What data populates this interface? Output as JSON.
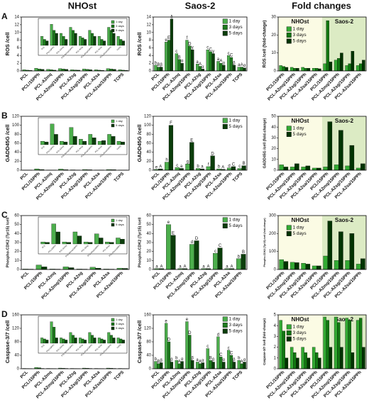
{
  "headers": [
    "NHOst",
    "Saos-2",
    "Fold changes"
  ],
  "panel_letters": [
    "A",
    "B",
    "C",
    "D"
  ],
  "chart_data": [
    {
      "type": "bar",
      "ylabel": "ROS /cell",
      "categories": [
        "PCL",
        "PCL/15PPh",
        "PCL-A2mq",
        "PCL-A2mq/15PPh",
        "PCL-A2sg",
        "PCL-A2sg/15PPh",
        "PCL-A2sa",
        "PCL-A2sa/15PPh",
        "TCPS"
      ],
      "ylim": [
        0,
        14
      ],
      "yticks": [
        0,
        2,
        4,
        6,
        8,
        10,
        12,
        14
      ],
      "inset_ylim": [
        0,
        0.8
      ],
      "legend": true,
      "series": [
        {
          "name": "1 day",
          "color": "#4cae4c",
          "values": [
            0.3,
            0.7,
            0.4,
            0.6,
            0.3,
            0.5,
            0.3,
            0.6,
            0.3
          ]
        },
        {
          "name": "3 days",
          "color": "#1e7b1e",
          "values": [
            0.2,
            0.5,
            0.3,
            0.5,
            0.25,
            0.4,
            0.2,
            0.5,
            0.2
          ]
        },
        {
          "name": "5 days",
          "color": "#0b3d0b",
          "values": [
            0.15,
            0.4,
            0.2,
            0.4,
            0.2,
            0.3,
            0.15,
            0.4,
            0.15
          ]
        }
      ]
    },
    {
      "type": "bar",
      "ylabel": "ROS /cell",
      "categories": [
        "PCL",
        "PCL/15PPh",
        "PCL-A2mq",
        "PCL-A2mq/15PPh",
        "PCL-A2sg",
        "PCL-A2sg/15PPh",
        "PCL-A2sa",
        "PCL-A2sa/15PPh",
        "TCPS"
      ],
      "ylim": [
        0,
        14
      ],
      "yticks": [
        0,
        2,
        4,
        6,
        8,
        10,
        12,
        14
      ],
      "legend": true,
      "series": [
        {
          "name": "1 day",
          "color": "#4cae4c",
          "values": [
            1.5,
            7.5,
            4.5,
            8,
            1.8,
            5.5,
            2.5,
            4,
            1
          ],
          "letters": [
            "b",
            "e",
            "c",
            "f",
            "a",
            "c",
            "a",
            "c",
            "a"
          ]
        },
        {
          "name": "3 days",
          "color": "#1e7b1e",
          "values": [
            1,
            8,
            3,
            6.5,
            1.2,
            5,
            2,
            3.5,
            1
          ],
          "letters": [
            "B",
            "E",
            "B",
            "D",
            "A",
            "C",
            "A",
            "C",
            "A"
          ]
        },
        {
          "name": "5 days",
          "color": "#0b3d0b",
          "values": [
            1,
            13.5,
            2,
            5.5,
            0.5,
            4.5,
            1.5,
            1.5,
            0.8
          ],
          "letters": [
            "β",
            "δ",
            "α",
            "γ",
            "α",
            "γ",
            "α",
            "β",
            "α"
          ]
        }
      ]
    },
    {
      "type": "bar",
      "ylabel": "ROS /cell (fold-change)",
      "categories": [
        "PCL/15PPh",
        "PCL-A2mq/15PPh",
        "PCL-A2sg/15PPh",
        "PCL-A2sa/15PPh",
        "PCL/15PPh",
        "PCL-A2mq/15PPh",
        "PCL-A2sg/15PPh",
        "PCL-A2sa/15PPh"
      ],
      "groups": [
        "NHOst",
        "Saos-2"
      ],
      "ylim": [
        0,
        30
      ],
      "yticks": [
        0,
        10,
        20,
        30
      ],
      "legend": true,
      "series": [
        {
          "name": "1 day",
          "color": "#33aa33",
          "values": [
            3,
            2,
            2,
            1.5,
            4,
            6,
            3,
            3
          ]
        },
        {
          "name": "3 days",
          "color": "#117711",
          "values": [
            2.5,
            1.5,
            1.5,
            1.5,
            28,
            7,
            4,
            4
          ]
        },
        {
          "name": "5 days",
          "color": "#003300",
          "values": [
            2,
            1.5,
            1.5,
            1.2,
            5,
            10,
            11,
            6
          ]
        }
      ]
    },
    {
      "type": "bar",
      "ylabel": "GADD45G /cell",
      "categories": [
        "PCL",
        "PCL/15PPh",
        "PCL-A2mq",
        "PCL-A2mq/15PPh",
        "PCL-A2sg",
        "PCL-A2sg/15PPh",
        "PCL-A2sa",
        "PCL-A2sa/15PPh",
        "TCPS"
      ],
      "ylim": [
        0,
        120
      ],
      "yticks": [
        0,
        20,
        40,
        60,
        80,
        100,
        120
      ],
      "inset_ylim": [
        0,
        3.5
      ],
      "legend": true,
      "series": [
        {
          "name": "1 day",
          "color": "#4cae4c",
          "values": [
            0.5,
            3,
            0.5,
            2.5,
            0.8,
            1.5,
            0.5,
            1.5,
            0.5
          ]
        },
        {
          "name": "5 days",
          "color": "#0b3d0b",
          "values": [
            0.4,
            1.5,
            0.4,
            1.2,
            0.5,
            1,
            0.6,
            1.2,
            0.4
          ]
        }
      ]
    },
    {
      "type": "bar",
      "ylabel": "GADD45G /cell",
      "categories": [
        "PCL",
        "PCL/15PPh",
        "PCL-A2mq",
        "PCL-A2mq/15PPh",
        "PCL-A2sg",
        "PCL-A2sg/15PPh",
        "PCL-A2sa",
        "PCL-A2sa/15PPh",
        "TCPS"
      ],
      "ylim": [
        0,
        120
      ],
      "yticks": [
        0,
        20,
        40,
        60,
        80,
        100,
        120
      ],
      "legend": true,
      "series": [
        {
          "name": "1 day",
          "color": "#4cae4c",
          "values": [
            2,
            18,
            6,
            14,
            4,
            8,
            3,
            5,
            4
          ],
          "letters": [
            "e",
            "h",
            "c",
            "g",
            "b",
            "f",
            "b",
            "d",
            "c"
          ]
        },
        {
          "name": "5 days",
          "color": "#0b3d0b",
          "values": [
            3,
            100,
            4,
            62,
            3,
            32,
            2,
            8,
            10
          ],
          "letters": [
            "A",
            "F",
            "a",
            "E",
            "a",
            "D",
            "A",
            "C",
            "B"
          ]
        }
      ]
    },
    {
      "type": "bar",
      "ylabel": "GADD45G /cell (fold-change)",
      "categories": [
        "PCL/15PPh",
        "PCL-A2mq/15PPh",
        "PCL-A2sg/15PPh",
        "PCL-A2sa/15PPh",
        "PCL/15PPh",
        "PCL-A2mq/15PPh",
        "PCL-A2sg/15PPh",
        "PCL-A2sa/15PPh"
      ],
      "groups": [
        "NHOst",
        "Saos-2"
      ],
      "ylim": [
        0,
        50
      ],
      "yticks": [
        0,
        10,
        20,
        30,
        40,
        50
      ],
      "legend": true,
      "series": [
        {
          "name": "1 day",
          "color": "#33aa33",
          "values": [
            5,
            3,
            3,
            2,
            3,
            5,
            4,
            2
          ]
        },
        {
          "name": "5 days",
          "color": "#003300",
          "values": [
            3,
            6,
            4,
            2,
            45,
            37,
            23,
            6
          ]
        }
      ]
    },
    {
      "type": "bar",
      "ylabel": "Phospho-CDK2 (Tyr15) /cell",
      "categories": [
        "PCL",
        "PCL/15PPh",
        "PCL-A2mq",
        "PCL-A2mq/15PPh",
        "PCL-A2sg",
        "PCL-A2sg/15PPh",
        "PCL-A2sa",
        "PCL-A2sa/15PPh"
      ],
      "ylim": [
        0,
        60
      ],
      "yticks": [
        0,
        10,
        20,
        30,
        40,
        50,
        60
      ],
      "inset_ylim": [
        0,
        6
      ],
      "legend": true,
      "series": [
        {
          "name": "1 day",
          "color": "#4cae4c",
          "values": [
            0.5,
            5,
            0.5,
            3,
            0.5,
            2.5,
            0.5,
            1.5
          ]
        },
        {
          "name": "5 days",
          "color": "#0b3d0b",
          "values": [
            0.4,
            3,
            0.4,
            2,
            0.4,
            1.5,
            0.4,
            1.2
          ]
        }
      ]
    },
    {
      "type": "bar",
      "ylabel": "Phospho-CDK2 (Tyr15) /cell",
      "categories": [
        "PCL",
        "PCL/15PPh",
        "PCL-A2mq",
        "PCL-A2mq/15PPh",
        "PCL-A2sg",
        "PCL-A2sg/15PPh",
        "PCL-A2sa",
        "PCL-A2sa/15PPh"
      ],
      "ylim": [
        0,
        60
      ],
      "yticks": [
        0,
        10,
        20,
        30,
        40,
        50,
        60
      ],
      "legend": true,
      "series": [
        {
          "name": "1 day",
          "color": "#4cae4c",
          "values": [
            1,
            50,
            1,
            28,
            1,
            18,
            1,
            12
          ],
          "letters": [
            "a",
            "e",
            "a",
            "d",
            "a",
            "c",
            "a",
            "b"
          ]
        },
        {
          "name": "5 days",
          "color": "#0b3d0b",
          "values": [
            1,
            38,
            1,
            32,
            1,
            24,
            1,
            17
          ],
          "letters": [
            "A",
            "E",
            "A",
            "D",
            "A",
            "C",
            "A",
            "B"
          ]
        }
      ]
    },
    {
      "type": "bar",
      "ylabel": "Phospho-CDK2 (Tyr15) /cell (fold-change)",
      "categories": [
        "PCL/15PPh",
        "PCL-A2mq/15PPh",
        "PCL-A2sg/15PPh",
        "PCL-A2sa/15PPh",
        "PCL/15PPh",
        "PCL-A2mq/15PPh",
        "PCL-A2sg/15PPh",
        "PCL-A2sa/15PPh"
      ],
      "groups": [
        "NHOst",
        "Saos-2"
      ],
      "ylim": [
        0,
        300
      ],
      "yticks": [
        0,
        100,
        200,
        300
      ],
      "legend": true,
      "series": [
        {
          "name": "1 day",
          "color": "#33aa33",
          "values": [
            55,
            40,
            35,
            20,
            75,
            50,
            50,
            30
          ]
        },
        {
          "name": "5 days",
          "color": "#003300",
          "values": [
            45,
            38,
            30,
            20,
            270,
            210,
            200,
            60
          ]
        }
      ]
    },
    {
      "type": "bar",
      "ylabel": "Caspase-3/7 /cell",
      "categories": [
        "PCL",
        "PCL/15PPh",
        "PCL-A2mq",
        "PCL-A2mq/15PPh",
        "PCL-A2sg",
        "PCL-A2sg/15PPh",
        "PCL-A2sa",
        "PCL-A2sa/15PPh",
        "TCPS"
      ],
      "ylim": [
        0,
        160
      ],
      "yticks": [
        0,
        40,
        80,
        120,
        160
      ],
      "inset_ylim": [
        0,
        4.5
      ],
      "legend": true,
      "series": [
        {
          "name": "1 day",
          "color": "#4cae4c",
          "values": [
            1,
            4,
            1,
            2,
            1,
            2,
            1,
            2,
            1
          ]
        },
        {
          "name": "3 days",
          "color": "#1e7b1e",
          "values": [
            0.8,
            3,
            0.8,
            1.5,
            0.8,
            1.5,
            0.8,
            1.5,
            0.8
          ]
        },
        {
          "name": "5 days",
          "color": "#0b3d0b",
          "values": [
            0.6,
            1,
            0.6,
            1,
            0.6,
            1,
            0.6,
            1,
            0.6
          ]
        }
      ]
    },
    {
      "type": "bar",
      "ylabel": "Caspase-3/7 /cell",
      "categories": [
        "PCL",
        "PCL/15PPh",
        "PCL-A2mq",
        "PCL-A2mq/15PPh",
        "PCL-A2sg",
        "PCL-A2sg/15PPh",
        "PCL-A2sa",
        "PCL-A2sa/15PPh",
        "TCPS"
      ],
      "ylim": [
        0,
        160
      ],
      "yticks": [
        0,
        40,
        80,
        120,
        160
      ],
      "legend": true,
      "series": [
        {
          "name": "1 day",
          "color": "#4cae4c",
          "values": [
            22,
            135,
            25,
            140,
            20,
            60,
            95,
            55,
            25
          ],
          "letters": [
            "b",
            "e",
            "b",
            "e",
            "a",
            "c",
            "d",
            "c",
            "b"
          ]
        },
        {
          "name": "3 days",
          "color": "#1e7b1e",
          "values": [
            15,
            80,
            15,
            100,
            15,
            25,
            35,
            40,
            15
          ],
          "letters": [
            "B",
            "D",
            "A",
            "D",
            "A",
            "B",
            "C",
            "C",
            "A"
          ]
        },
        {
          "name": "5 days",
          "color": "#0b3d0b",
          "values": [
            18,
            20,
            22,
            25,
            18,
            20,
            20,
            20,
            20
          ],
          "letters": [
            "β",
            "β",
            "α",
            "β",
            "α",
            "β",
            "α",
            "β",
            "α"
          ]
        }
      ]
    },
    {
      "type": "bar",
      "ylabel": "Caspase-3/7 /cell (fold-change)",
      "categories": [
        "PCL/15PPh",
        "PCL-A2mq/15PPh",
        "PCL-A2sg/15PPh",
        "PCL-A2sa/15PPh",
        "PCL/15PPh",
        "PCL-A2mq/15PPh",
        "PCL-A2sg/15PPh",
        "PCL-A2sa/15PPh"
      ],
      "groups": [
        "NHOst",
        "Saos-2"
      ],
      "ylim": [
        0,
        5
      ],
      "yticks": [
        0,
        1,
        2,
        3,
        4,
        5
      ],
      "legend": true,
      "series": [
        {
          "name": "1 day",
          "color": "#33aa33",
          "values": [
            4.5,
            2,
            2,
            2,
            4.8,
            4.8,
            4.7,
            4.5
          ]
        },
        {
          "name": "3 days",
          "color": "#117711",
          "values": [
            3.5,
            1.5,
            1.5,
            1.5,
            4.5,
            4.3,
            4.5,
            4.7
          ]
        },
        {
          "name": "5 days",
          "color": "#003300",
          "values": [
            1,
            1,
            1,
            1,
            2,
            2,
            1.5,
            2
          ]
        }
      ]
    }
  ]
}
